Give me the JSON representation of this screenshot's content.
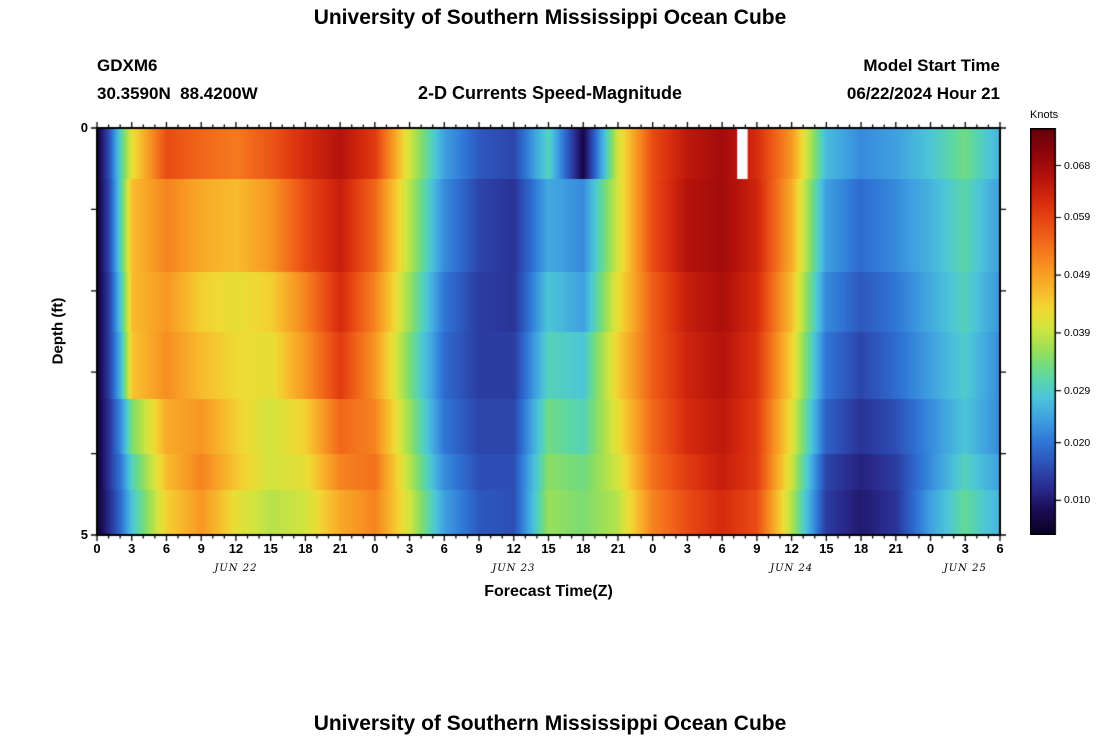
{
  "page": {
    "title": "University of Southern Mississippi Ocean Cube",
    "bottom_title": "University of Southern Mississippi Ocean Cube"
  },
  "header": {
    "station": "GDXM6",
    "coords": "30.3590N  88.4200W",
    "plot_title": "2-D Currents Speed-Magnitude",
    "model_start_label": "Model Start Time",
    "model_start_value": "06/22/2024 Hour 21"
  },
  "chart_data": {
    "type": "heatmap",
    "title": "2-D Currents Speed-Magnitude",
    "xlabel": "Forecast Time(Z)",
    "ylabel": "Depth (ft)",
    "colorbar_label": "Knots",
    "colorbar_ticks": [
      "0.068",
      "0.059",
      "0.049",
      "0.039",
      "0.029",
      "0.020",
      "0.010"
    ],
    "value_range": [
      0.004,
      0.0745
    ],
    "hours_range": [
      0,
      78
    ],
    "depth_range_ft": [
      0,
      5
    ],
    "x_tick_labels": [
      "0",
      "3",
      "6",
      "9",
      "12",
      "15",
      "18",
      "21",
      "0",
      "3",
      "6",
      "9",
      "12",
      "15",
      "18",
      "21",
      "0",
      "3",
      "6",
      "9",
      "12",
      "15",
      "18",
      "21",
      "0",
      "3",
      "6"
    ],
    "y_ticks": [
      {
        "label": "0",
        "depth": 0
      },
      {
        "label": "5",
        "depth": 5
      }
    ],
    "day_labels": [
      {
        "label": "JUN 22",
        "start_hour": 0,
        "end_hour": 24
      },
      {
        "label": "JUN 23",
        "start_hour": 24,
        "end_hour": 48
      },
      {
        "label": "JUN 24",
        "start_hour": 48,
        "end_hour": 72
      },
      {
        "label": "JUN 25",
        "start_hour": 72,
        "end_hour": 78
      }
    ],
    "x_hours": [
      0,
      1,
      2,
      3,
      6,
      9,
      12,
      15,
      18,
      21,
      24,
      27,
      30,
      33,
      36,
      39,
      42,
      45,
      48,
      51,
      54,
      57,
      60,
      63,
      66,
      69,
      72,
      75,
      78
    ],
    "row_depth_fractions": [
      0,
      0.125,
      0.355,
      0.5,
      0.665,
      0.8,
      0.89,
      1
    ],
    "rows": [
      [
        0.006,
        0.016,
        0.03,
        0.042,
        0.058,
        0.055,
        0.053,
        0.057,
        0.062,
        0.066,
        0.06,
        0.04,
        0.024,
        0.017,
        0.015,
        0.03,
        0.007,
        0.04,
        0.058,
        0.065,
        0.068,
        0.062,
        0.05,
        0.027,
        0.022,
        0.024,
        0.028,
        0.033,
        0.026
      ],
      [
        0.006,
        0.015,
        0.03,
        0.046,
        0.052,
        0.048,
        0.046,
        0.05,
        0.058,
        0.064,
        0.055,
        0.038,
        0.022,
        0.015,
        0.013,
        0.025,
        0.022,
        0.04,
        0.058,
        0.066,
        0.068,
        0.063,
        0.048,
        0.024,
        0.019,
        0.022,
        0.026,
        0.031,
        0.024
      ],
      [
        0.006,
        0.014,
        0.028,
        0.046,
        0.05,
        0.044,
        0.042,
        0.044,
        0.052,
        0.062,
        0.052,
        0.036,
        0.02,
        0.014,
        0.013,
        0.028,
        0.024,
        0.042,
        0.056,
        0.064,
        0.067,
        0.062,
        0.046,
        0.022,
        0.017,
        0.02,
        0.025,
        0.03,
        0.023
      ],
      [
        0.006,
        0.014,
        0.026,
        0.045,
        0.051,
        0.046,
        0.043,
        0.042,
        0.05,
        0.06,
        0.05,
        0.034,
        0.019,
        0.014,
        0.014,
        0.03,
        0.028,
        0.044,
        0.056,
        0.063,
        0.066,
        0.061,
        0.044,
        0.02,
        0.015,
        0.019,
        0.024,
        0.029,
        0.022
      ],
      [
        0.006,
        0.013,
        0.022,
        0.034,
        0.048,
        0.05,
        0.044,
        0.04,
        0.044,
        0.055,
        0.052,
        0.036,
        0.02,
        0.015,
        0.015,
        0.033,
        0.03,
        0.042,
        0.055,
        0.062,
        0.065,
        0.06,
        0.042,
        0.018,
        0.013,
        0.016,
        0.022,
        0.028,
        0.022
      ],
      [
        0.006,
        0.013,
        0.02,
        0.03,
        0.046,
        0.052,
        0.045,
        0.04,
        0.042,
        0.052,
        0.054,
        0.038,
        0.022,
        0.016,
        0.016,
        0.035,
        0.033,
        0.04,
        0.054,
        0.06,
        0.064,
        0.06,
        0.04,
        0.015,
        0.011,
        0.014,
        0.022,
        0.03,
        0.024
      ],
      [
        0.006,
        0.012,
        0.019,
        0.028,
        0.044,
        0.05,
        0.042,
        0.038,
        0.04,
        0.048,
        0.052,
        0.04,
        0.024,
        0.017,
        0.016,
        0.036,
        0.034,
        0.038,
        0.052,
        0.058,
        0.062,
        0.058,
        0.038,
        0.014,
        0.01,
        0.013,
        0.024,
        0.032,
        0.026
      ]
    ],
    "missing_patch": {
      "hour_start": 55.3,
      "hour_end": 56.2,
      "depth_fraction_top": 0,
      "depth_fraction_bottom": 0.125
    },
    "colormap": [
      {
        "v": 0.004,
        "c": "#0a0322"
      },
      {
        "v": 0.008,
        "c": "#1a0b50"
      },
      {
        "v": 0.012,
        "c": "#292a8c"
      },
      {
        "v": 0.016,
        "c": "#2d4fb5"
      },
      {
        "v": 0.02,
        "c": "#2f76d6"
      },
      {
        "v": 0.024,
        "c": "#3fa0e0"
      },
      {
        "v": 0.028,
        "c": "#4cc6d8"
      },
      {
        "v": 0.031,
        "c": "#5bd6a8"
      },
      {
        "v": 0.034,
        "c": "#7cdc72"
      },
      {
        "v": 0.037,
        "c": "#a8e151"
      },
      {
        "v": 0.04,
        "c": "#d4e43e"
      },
      {
        "v": 0.043,
        "c": "#f0da34"
      },
      {
        "v": 0.046,
        "c": "#f7bc2d"
      },
      {
        "v": 0.05,
        "c": "#f79723"
      },
      {
        "v": 0.054,
        "c": "#f3701c"
      },
      {
        "v": 0.058,
        "c": "#e94c14"
      },
      {
        "v": 0.062,
        "c": "#d52b0e"
      },
      {
        "v": 0.066,
        "c": "#b5130b"
      },
      {
        "v": 0.07,
        "c": "#8f050a"
      },
      {
        "v": 0.0745,
        "c": "#65000c"
      }
    ]
  }
}
